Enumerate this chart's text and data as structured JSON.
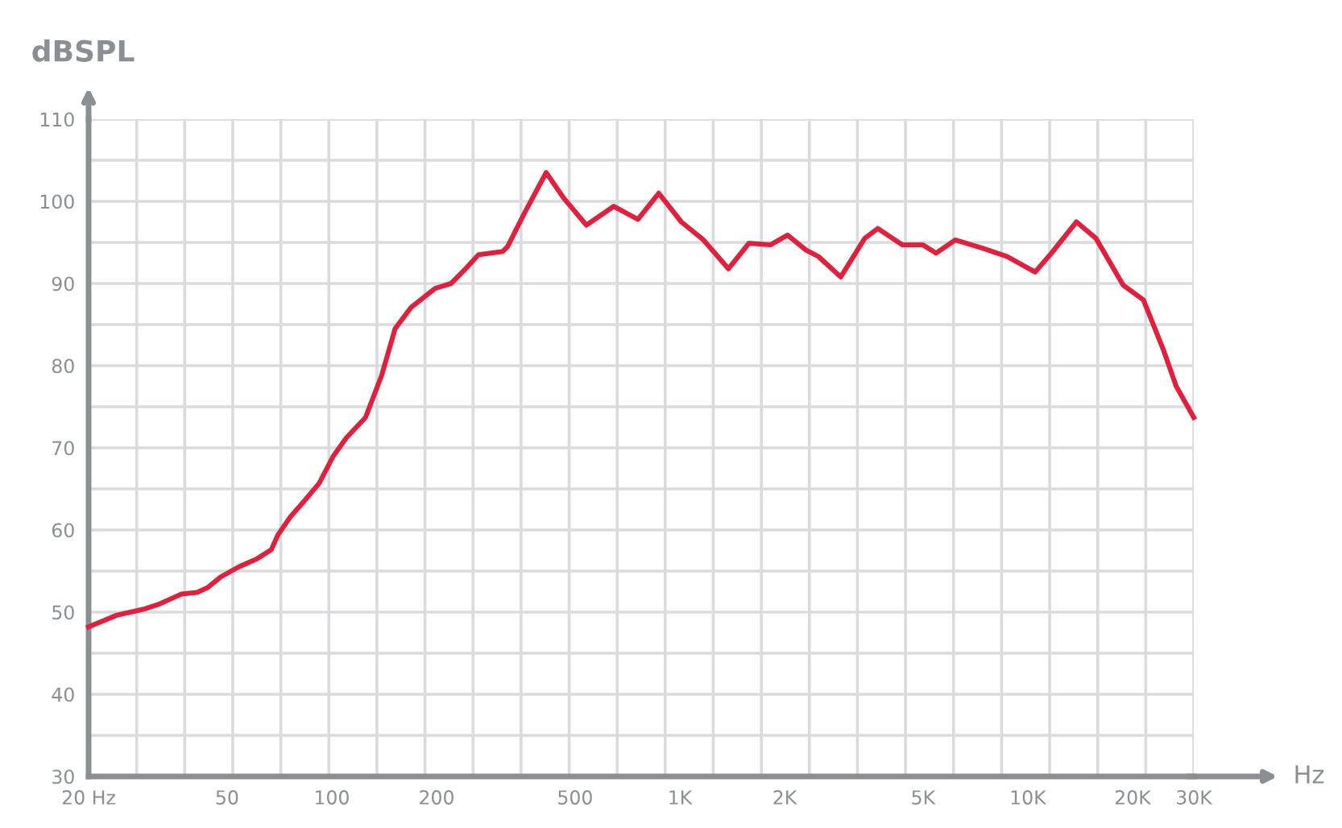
{
  "chart_data": {
    "type": "line",
    "xlabel": "Hz",
    "ylabel": "dBSPL",
    "log": "x",
    "xlim": [
      20,
      30000
    ],
    "ylim": [
      30,
      110
    ],
    "xticks": [
      {
        "value": 20,
        "label": "20 Hz"
      },
      50,
      100,
      200,
      500,
      {
        "value": 1000,
        "label": "1K"
      },
      {
        "value": 2000,
        "label": "2K"
      },
      {
        "value": 5000,
        "label": "5K"
      },
      {
        "value": 10000,
        "label": "10K"
      },
      {
        "value": 20000,
        "label": "20K"
      },
      {
        "value": 30000,
        "label": "30K"
      }
    ],
    "yticks": [
      30,
      40,
      50,
      60,
      70,
      80,
      90,
      100,
      110
    ],
    "grid": true,
    "marker": "none",
    "line_style": "solid",
    "series": [
      {
        "color": "#e0203c",
        "x": [
          20,
          24,
          29,
          32,
          37,
          41,
          44,
          48,
          54,
          61,
          67,
          70,
          76,
          84,
          92,
          101,
          110,
          125,
          139,
          152,
          169,
          198,
          220,
          240,
          264,
          310,
          320,
          356,
          413,
          464,
          539,
          646,
          758,
          870,
          1010,
          1170,
          1380,
          1580,
          1820,
          2040,
          2300,
          2500,
          2900,
          3400,
          3710,
          4360,
          5000,
          5450,
          6190,
          7410,
          8710,
          10500,
          11700,
          13800,
          15700,
          18800,
          21500,
          24500,
          26700,
          30000
        ],
        "values": [
          48.2,
          49.6,
          50.4,
          51,
          52.2,
          52.4,
          53,
          54.3,
          55.5,
          56.5,
          57.6,
          59.4,
          61.6,
          63.7,
          65.7,
          69,
          71.2,
          73.7,
          78.8,
          84.5,
          87.1,
          89.4,
          90,
          91.6,
          93.5,
          93.9,
          94.5,
          98.4,
          103.5,
          100.4,
          97.1,
          99.4,
          97.8,
          101,
          97.5,
          95.3,
          91.8,
          94.9,
          94.7,
          95.9,
          94.1,
          93.3,
          90.8,
          95.5,
          96.7,
          94.7,
          94.7,
          93.7,
          95.3,
          94.3,
          93.3,
          91.4,
          93.7,
          97.5,
          95.5,
          89.8,
          88,
          82,
          77.5,
          73.7
        ]
      }
    ]
  }
}
